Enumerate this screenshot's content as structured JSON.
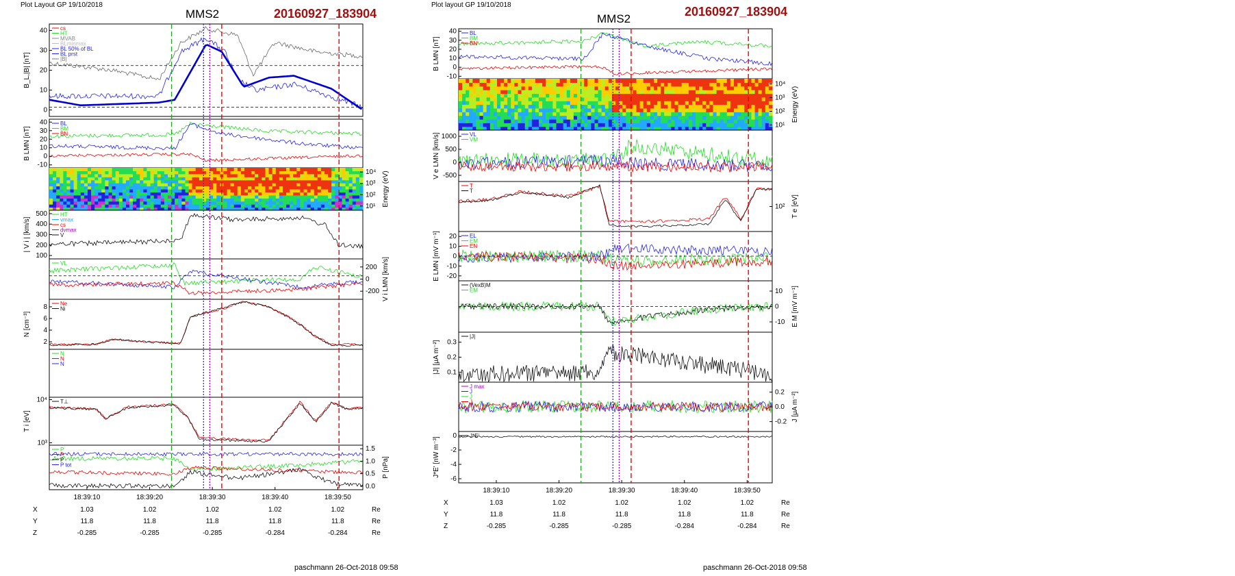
{
  "left": {
    "header": "Plot Layout GP 19/10/2018",
    "spacecraft": "MMS2",
    "event_id": "20160927_183904",
    "footer": "paschmann 26-Oct-2018 09:58",
    "x_ticks": [
      "18:39:10",
      "18:39:20",
      "18:39:30",
      "18:39:40",
      "18:39:50"
    ],
    "orbit": {
      "labels": [
        "X",
        "Y",
        "Z"
      ],
      "unit": "Re",
      "X": [
        "1.03",
        "1.02",
        "1.02",
        "1.02",
        "1.02"
      ],
      "Y": [
        "11.8",
        "11.8",
        "11.8",
        "11.8",
        "11.8"
      ],
      "Z": [
        "-0.285",
        "-0.285",
        "-0.285",
        "-0.284",
        "-0.284"
      ]
    },
    "panels": [
      {
        "ylabel": "B_L,|B| [nT]",
        "ticks": [
          "40",
          "30",
          "20",
          "10",
          "0"
        ],
        "legend": [
          "cs",
          "HT",
          "MVAB",
          "BLminmax",
          "BL 50% of BL",
          "BL prst",
          "|B|"
        ]
      },
      {
        "ylabel": "B LMN [nT]",
        "ticks": [
          "40",
          "30",
          "20",
          "10",
          "0",
          "-10"
        ],
        "legend": [
          "BL",
          "BM",
          "BN"
        ]
      },
      {
        "ylabel": "Energy (eV)",
        "ticks": [
          "10⁴",
          "10³",
          "10²",
          "10¹"
        ]
      },
      {
        "ylabel": "| V i | [km/s]",
        "ticks": [
          "500",
          "400",
          "300",
          "200",
          "100"
        ],
        "legend": [
          "HT",
          "vmax",
          "cs",
          "dvmax",
          "V"
        ]
      },
      {
        "ylabel": "V i LMN [km/s]",
        "ticks": [
          "200",
          "0",
          "-200"
        ],
        "legend": [
          "VL"
        ]
      },
      {
        "ylabel": "N [cm⁻³]",
        "ticks": [
          "8",
          "6",
          "4",
          "2"
        ],
        "legend": [
          "Ne",
          "Ni"
        ]
      },
      {
        "ylabel": "",
        "ticks": [],
        "legend": [
          "N",
          "N",
          "N"
        ]
      },
      {
        "ylabel": "T i [eV]",
        "ticks": [
          "10⁴",
          "10³"
        ],
        "legend": [
          "T⊥"
        ]
      },
      {
        "ylabel": "P [nPa]",
        "ticks": [
          "1.5",
          "1.0",
          "0.5",
          "0.0"
        ],
        "legend": [
          "P",
          "P",
          "P",
          "P tot"
        ]
      }
    ]
  },
  "right": {
    "header": "Plot layout GP 19/10/2018",
    "spacecraft": "MMS2",
    "event_id": "20160927_183904",
    "footer": "paschmann 26-Oct-2018 09:58",
    "x_ticks": [
      "18:39:10",
      "18:39:20",
      "18:39:30",
      "18:39:40",
      "18:39:50"
    ],
    "orbit": {
      "labels": [
        "X",
        "Y",
        "Z"
      ],
      "unit": "Re",
      "X": [
        "1.03",
        "1.02",
        "1.02",
        "1.02",
        "1.02"
      ],
      "Y": [
        "11.8",
        "11.8",
        "11.8",
        "11.8",
        "11.8"
      ],
      "Z": [
        "-0.285",
        "-0.285",
        "-0.285",
        "-0.284",
        "-0.284"
      ]
    },
    "panels": [
      {
        "ylabel": "B LMN [nT]",
        "ticks": [
          "40",
          "30",
          "20",
          "10",
          "0",
          "-10"
        ],
        "legend": [
          "BL",
          "BM",
          "BN"
        ]
      },
      {
        "ylabel": "Energy (eV)",
        "ticks": [
          "10⁴",
          "10³",
          "10²",
          "10¹"
        ]
      },
      {
        "ylabel": "V e LMN [km/s]",
        "ticks": [
          "1000",
          "500",
          "0",
          "-500"
        ],
        "legend": [
          "VL",
          "VM"
        ]
      },
      {
        "ylabel": "T e [eV]",
        "ticks": [
          "10²"
        ],
        "legend": [
          "T",
          "T"
        ]
      },
      {
        "ylabel": "E LMN [mV m⁻¹]",
        "ticks": [
          "20",
          "10",
          "0",
          "-10",
          "-20"
        ],
        "legend": [
          "EL",
          "EM",
          "EN"
        ]
      },
      {
        "ylabel": "E M [mV m⁻¹]",
        "ticks": [
          "10",
          "0",
          "-10"
        ],
        "legend": [
          "(VexB)M",
          "EM"
        ]
      },
      {
        "ylabel": "|J| [μA m⁻²]",
        "ticks": [
          "0.3",
          "0.2",
          "0.1"
        ],
        "legend": [
          "|J|"
        ]
      },
      {
        "ylabel": "J [μA m⁻²]",
        "ticks": [
          "0.2",
          "0.0",
          "-0.2"
        ],
        "legend": [
          "J max",
          "J",
          "J",
          "J"
        ]
      },
      {
        "ylabel": "J*E' [nW m⁻³]",
        "ticks": [
          "0",
          "-2",
          "-4",
          "-6"
        ],
        "legend": [
          "J*E'"
        ]
      }
    ]
  },
  "chart_data": [
    {
      "type": "line",
      "title": "MMS2",
      "xlabel": "",
      "x_ticks": [
        "18:39:10",
        "18:39:20",
        "18:39:30",
        "18:39:40",
        "18:39:50"
      ],
      "xlim": [
        "18:39:04",
        "18:39:54"
      ],
      "panels": [
        {
          "name": "B_L,|B|",
          "ylim": [
            -3,
            45
          ],
          "series": [
            {
              "name": "BL prst",
              "color": "#0000dd",
              "x": [
                4,
                8,
                12,
                16,
                20,
                24,
                26,
                28,
                30,
                32,
                34,
                36,
                38,
                40,
                42,
                44,
                46,
                48,
                50,
                52,
                54
              ],
              "y": [
                5,
                3,
                4,
                5,
                5,
                4,
                12,
                22,
                30,
                28,
                22,
                13,
                8,
                10,
                12,
                12,
                11,
                10,
                7,
                3,
                1
              ]
            },
            {
              "name": "|B|",
              "color": "#777777",
              "x": [
                4,
                8,
                12,
                16,
                20,
                24,
                26,
                28,
                30,
                32,
                34,
                36,
                38,
                40,
                42,
                44,
                46,
                48,
                50,
                52,
                54
              ],
              "y": [
                25,
                22,
                18,
                16,
                15,
                14,
                30,
                38,
                33,
                40,
                36,
                22,
                30,
                38,
                33,
                32,
                30,
                28,
                25,
                22,
                20
              ]
            }
          ]
        },
        {
          "name": "B LMN",
          "ylim": [
            -15,
            40
          ]
        },
        {
          "name": "Energy",
          "ylim": [
            1,
            4
          ]
        },
        {
          "name": "|Vi|",
          "ylim": [
            50,
            500
          ]
        },
        {
          "name": "Vi LMN",
          "ylim": [
            -300,
            300
          ]
        },
        {
          "name": "N",
          "ylim": [
            0,
            9
          ],
          "series": [
            {
              "name": "Ne",
              "color": "#ee0000",
              "x": [
                4,
                10,
                14,
                18,
                22,
                26,
                28,
                30,
                32,
                34,
                36,
                38,
                40,
                42,
                44,
                46,
                48,
                50,
                52,
                54
              ],
              "y": [
                0.5,
                0.5,
                1.5,
                1.5,
                0.8,
                0.6,
                4,
                6,
                7,
                8,
                7.5,
                8,
                7,
                5,
                3,
                2,
                1.5,
                0.5,
                0.5,
                0.5
              ]
            },
            {
              "name": "Ni",
              "color": "#222222",
              "x": [
                4,
                10,
                14,
                18,
                22,
                26,
                28,
                30,
                32,
                34,
                36,
                38,
                40,
                42,
                44,
                46,
                48,
                50,
                52,
                54
              ],
              "y": [
                0.4,
                0.5,
                1.4,
                1.4,
                0.7,
                0.6,
                4,
                6,
                7.2,
                8.2,
                7.6,
                8.2,
                7,
                5,
                3,
                2,
                1.4,
                0.5,
                0.4,
                0.5
              ]
            }
          ]
        },
        {
          "name": "N components"
        },
        {
          "name": "Ti",
          "ylim_log": [
            2.8,
            4.0
          ]
        },
        {
          "name": "P",
          "ylim": [
            0,
            1.6
          ]
        }
      ],
      "markers": [
        {
          "name": "HT",
          "x": 23.5,
          "color": "#22aa22",
          "style": "dashed"
        },
        {
          "name": "vmax",
          "x": 28.6,
          "color": "#3333ff",
          "style": "dotted"
        },
        {
          "name": "dvmax",
          "x": 29.6,
          "color": "#aa00cc",
          "style": "dotted"
        },
        {
          "name": "cs",
          "x": 31.5,
          "color": "#ee0000",
          "style": "dashed"
        },
        {
          "name": "cs",
          "x": 50.2,
          "color": "#ee0000",
          "style": "dashed"
        }
      ],
      "reference_lines": {
        "panel": "B_L,|B|",
        "y": [
          16,
          0
        ],
        "color": "#0000aa",
        "style": "dashed"
      }
    },
    {
      "type": "line",
      "title": "MMS2",
      "xlabel": "",
      "x_ticks": [
        "18:39:10",
        "18:39:20",
        "18:39:30",
        "18:39:40",
        "18:39:50"
      ],
      "xlim": [
        "18:39:04",
        "18:39:54"
      ],
      "panels": [
        {
          "name": "B LMN",
          "ylim": [
            -15,
            40
          ]
        },
        {
          "name": "Energy",
          "ylim": [
            1,
            4
          ]
        },
        {
          "name": "Ve LMN",
          "ylim": [
            -700,
            1200
          ]
        },
        {
          "name": "Te",
          "ylim_log": [
            1.6,
            2.6
          ]
        },
        {
          "name": "E LMN",
          "ylim": [
            -30,
            30
          ]
        },
        {
          "name": "EM",
          "ylim": [
            -15,
            15
          ]
        },
        {
          "name": "|J|",
          "ylim": [
            0,
            0.35
          ]
        },
        {
          "name": "J",
          "ylim": [
            -0.3,
            0.3
          ]
        },
        {
          "name": "J*E'",
          "ylim": [
            -6.5,
            1
          ]
        }
      ],
      "markers": [
        {
          "name": "HT",
          "x": 23.5,
          "color": "#22aa22",
          "style": "dashed"
        },
        {
          "name": "vmax",
          "x": 28.6,
          "color": "#3333ff",
          "style": "dotted"
        },
        {
          "name": "dvmax",
          "x": 29.6,
          "color": "#aa00cc",
          "style": "dotted"
        },
        {
          "name": "cs",
          "x": 31.5,
          "color": "#ee0000",
          "style": "dashed"
        },
        {
          "name": "cs",
          "x": 50.2,
          "color": "#ee0000",
          "style": "dashed"
        }
      ]
    }
  ]
}
